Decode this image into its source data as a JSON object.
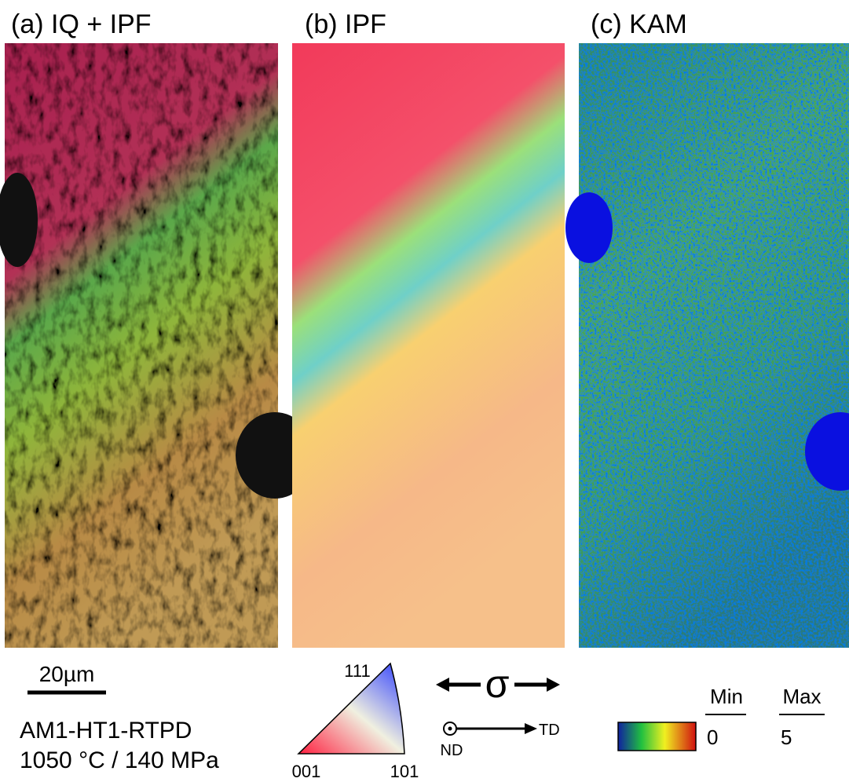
{
  "panels": [
    {
      "title": "(a) IQ + IPF"
    },
    {
      "title": "(b) IPF"
    },
    {
      "title": "(c) KAM"
    }
  ],
  "scale_bar": "20µm",
  "sample": [
    "AM1-HT1-RTPD",
    "1050 °C / 140 MPa"
  ],
  "ipf_key": {
    "top": "111",
    "left": "001",
    "right": "101"
  },
  "stress": "σ",
  "axes": {
    "normal": "ND",
    "transverse": "TD"
  },
  "kam_key": {
    "min_label": "Min",
    "max_label": "Max",
    "min": 0,
    "max": 5
  }
}
